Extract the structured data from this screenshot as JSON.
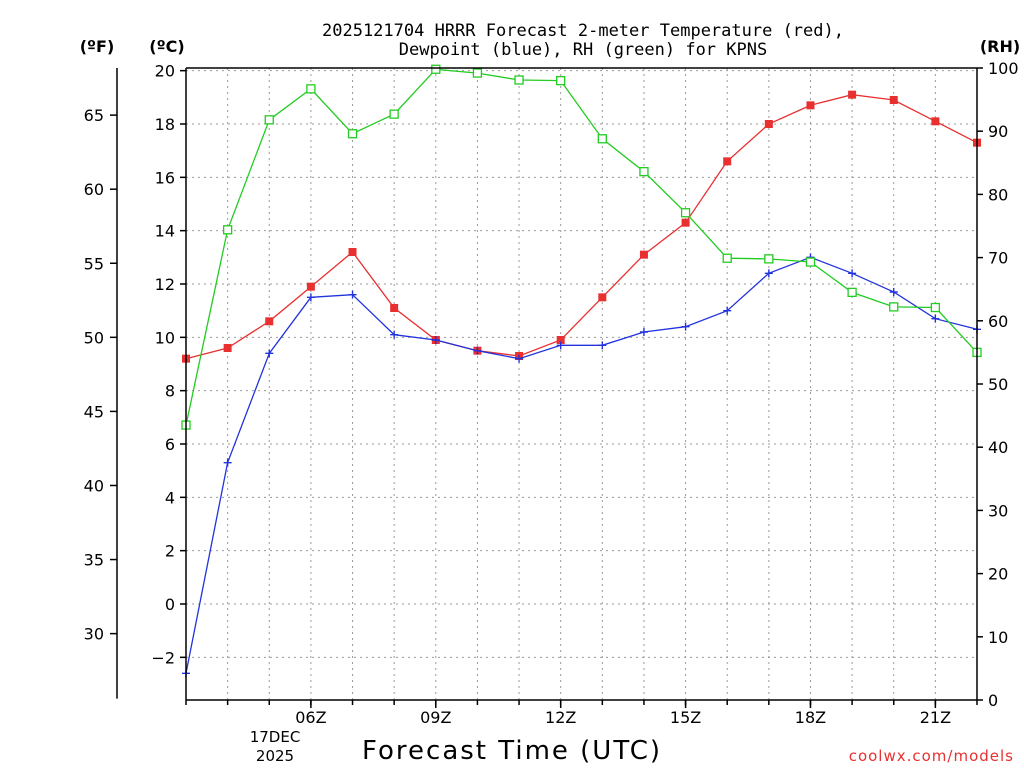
{
  "chart_data": {
    "type": "line",
    "title_line1": "2025121704 HRRR Forecast 2-meter Temperature (red),",
    "title_line2": "Dewpoint (blue), RH (green) for KPNS",
    "units_f": "(ºF)",
    "units_c": "(ºC)",
    "units_rh": "(RH)",
    "xlabel": "Forecast Time (UTC)",
    "date_line1": "17DEC",
    "date_line2": "2025",
    "credit": "coolwx.com/models",
    "x_hours": [
      3,
      4,
      5,
      6,
      7,
      8,
      9,
      10,
      11,
      12,
      13,
      14,
      15,
      16,
      17,
      18,
      19,
      20,
      21,
      22
    ],
    "xlim": [
      3,
      22
    ],
    "x_ticks": [
      {
        "hour": 6,
        "label": "06Z"
      },
      {
        "hour": 9,
        "label": "09Z"
      },
      {
        "hour": 12,
        "label": "12Z"
      },
      {
        "hour": 15,
        "label": "15Z"
      },
      {
        "hour": 18,
        "label": "18Z"
      },
      {
        "hour": 21,
        "label": "21Z"
      }
    ],
    "ylim_c": [
      -3.6,
      20.1
    ],
    "ylim_rh": [
      0,
      100
    ],
    "c_ticks": [
      "-2",
      "0",
      "2",
      "4",
      "6",
      "8",
      "10",
      "12",
      "14",
      "16",
      "18",
      "20"
    ],
    "f_ticks": [
      "30",
      "35",
      "40",
      "45",
      "50",
      "55",
      "60",
      "65"
    ],
    "rh_ticks": [
      "0",
      "10",
      "20",
      "30",
      "40",
      "50",
      "60",
      "70",
      "80",
      "90",
      "100"
    ],
    "colors": {
      "temperature": "#e83030",
      "dewpoint": "#2233dd",
      "rh": "#22cc22"
    },
    "series": [
      {
        "name": "Temperature",
        "units": "C",
        "marker": "filled-square",
        "values": [
          9.2,
          9.6,
          10.6,
          11.9,
          13.2,
          11.1,
          9.9,
          9.5,
          9.3,
          9.9,
          11.5,
          13.1,
          14.3,
          16.6,
          18.0,
          18.7,
          19.1,
          18.9,
          18.1,
          17.3
        ]
      },
      {
        "name": "Dewpoint",
        "units": "C",
        "marker": "plus",
        "values": [
          -2.6,
          5.3,
          9.4,
          11.5,
          11.6,
          10.1,
          9.9,
          9.5,
          9.2,
          9.7,
          9.7,
          10.2,
          10.4,
          11.0,
          12.4,
          13.0,
          12.4,
          11.7,
          10.7,
          10.3
        ]
      },
      {
        "name": "RH",
        "units": "%",
        "marker": "open-square",
        "values": [
          43.5,
          74.4,
          91.8,
          96.7,
          89.6,
          92.7,
          99.8,
          99.2,
          98.1,
          98.0,
          88.8,
          83.6,
          77.1,
          69.9,
          69.8,
          69.3,
          64.5,
          62.2,
          62.1,
          55.0
        ]
      }
    ]
  }
}
